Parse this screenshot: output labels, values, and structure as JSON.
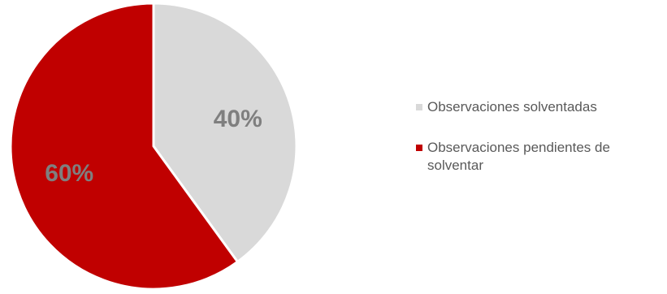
{
  "chart_data": {
    "type": "pie",
    "slices": [
      {
        "label": "Observaciones solventadas",
        "value": 40,
        "display": "40%",
        "color": "#d9d9d9"
      },
      {
        "label": "Observaciones pendientes de solventar",
        "value": 60,
        "display": "60%",
        "color": "#c00000"
      }
    ],
    "start_angle": "12 o'clock",
    "direction": "clockwise",
    "label_color": "#7f7f7f",
    "legend_position": "right"
  }
}
